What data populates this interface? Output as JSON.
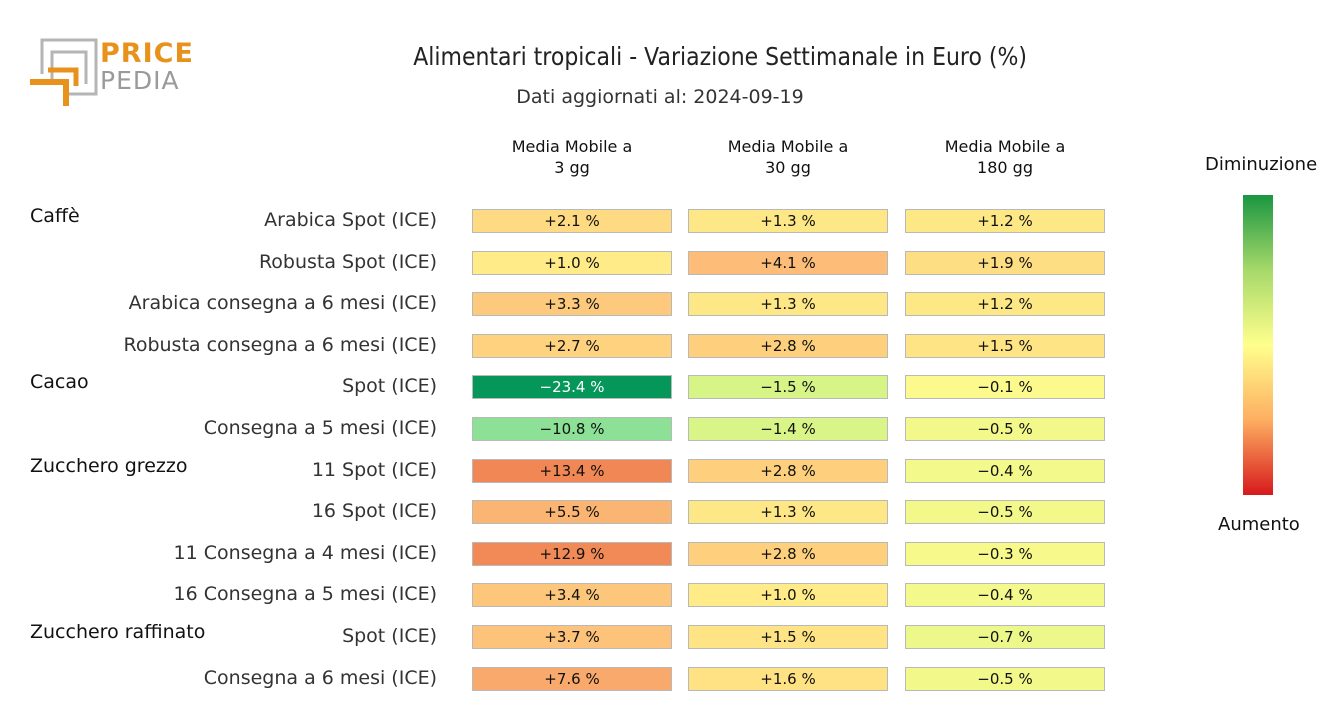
{
  "logo": {
    "line1": "PRICE",
    "line2": "PEDIA"
  },
  "colors": {
    "logo_orange": "#e8921c",
    "logo_gray": "#9a9a9a",
    "low": "#d7191c",
    "mid": "#ffff8c",
    "high": "#1a9641"
  },
  "chart_data": {
    "type": "heatmap",
    "title": "Alimentari tropicali - Variazione Settimanale in Euro (%)",
    "subtitle": "Dati aggiornati al: 2024-09-19",
    "columns": [
      "Media Mobile a\n3 gg",
      "Media Mobile a\n30 gg",
      "Media Mobile a\n180 gg"
    ],
    "legend": {
      "top": "Diminuzione",
      "bottom": "Aumento"
    },
    "unit": "%",
    "groups": [
      {
        "name": "Caffè",
        "rows": [
          {
            "label": "Arabica Spot (ICE)",
            "values": [
              2.1,
              1.3,
              1.2
            ]
          },
          {
            "label": "Robusta Spot (ICE)",
            "values": [
              1.0,
              4.1,
              1.9
            ]
          },
          {
            "label": "Arabica consegna a 6 mesi (ICE)",
            "values": [
              3.3,
              1.3,
              1.2
            ]
          },
          {
            "label": "Robusta consegna a 6 mesi (ICE)",
            "values": [
              2.7,
              2.8,
              1.5
            ]
          }
        ]
      },
      {
        "name": "Cacao",
        "rows": [
          {
            "label": "Spot (ICE)",
            "values": [
              -23.4,
              -1.5,
              -0.1
            ]
          },
          {
            "label": "Consegna a 5 mesi (ICE)",
            "values": [
              -10.8,
              -1.4,
              -0.5
            ]
          }
        ]
      },
      {
        "name": "Zucchero grezzo",
        "rows": [
          {
            "label": "11 Spot (ICE)",
            "values": [
              13.4,
              2.8,
              -0.4
            ]
          },
          {
            "label": "16 Spot (ICE)",
            "values": [
              5.5,
              1.3,
              -0.5
            ]
          },
          {
            "label": "11 Consegna a 4 mesi (ICE)",
            "values": [
              12.9,
              2.8,
              -0.3
            ]
          },
          {
            "label": "16 Consegna a 5 mesi (ICE)",
            "values": [
              3.4,
              1.0,
              -0.4
            ]
          }
        ]
      },
      {
        "name": "Zucchero raffinato",
        "rows": [
          {
            "label": "Spot (ICE)",
            "values": [
              3.7,
              1.5,
              -0.7
            ]
          },
          {
            "label": "Consegna a 6 mesi (ICE)",
            "values": [
              7.6,
              1.6,
              -0.5
            ]
          }
        ]
      }
    ]
  }
}
